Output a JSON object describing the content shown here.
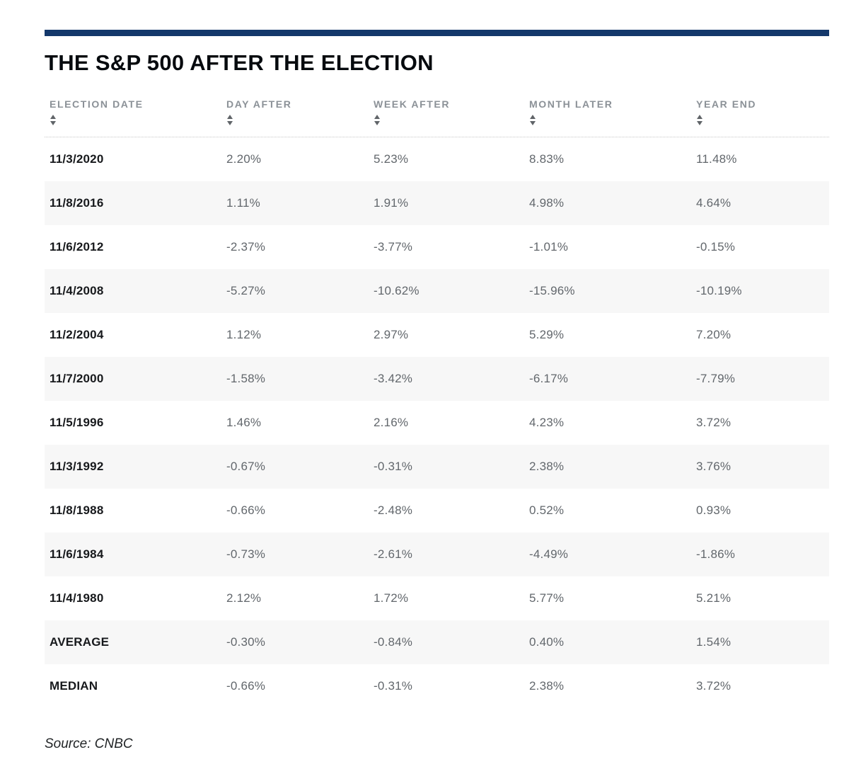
{
  "page": {
    "title": "THE S&P 500 AFTER THE ELECTION",
    "source": "Source: CNBC"
  },
  "colors": {
    "accent_bar": "#14386b",
    "header_text": "#8b9197",
    "sort_arrow": "#606468",
    "row_label_text": "#17191c",
    "value_text": "#62676c",
    "row_stripe": "#f7f7f7",
    "background": "#ffffff"
  },
  "icons": {
    "sort_asc": "triangle-up",
    "sort_desc": "triangle-down"
  },
  "table": {
    "columns": [
      {
        "label": "ELECTION DATE",
        "sortable": true
      },
      {
        "label": "DAY AFTER",
        "sortable": true
      },
      {
        "label": "WEEK AFTER",
        "sortable": true
      },
      {
        "label": "MONTH LATER",
        "sortable": true
      },
      {
        "label": "YEAR END",
        "sortable": true
      }
    ],
    "rows": [
      {
        "cells": [
          "11/3/2020",
          "2.20%",
          "5.23%",
          "8.83%",
          "11.48%"
        ]
      },
      {
        "cells": [
          "11/8/2016",
          "1.11%",
          "1.91%",
          "4.98%",
          "4.64%"
        ]
      },
      {
        "cells": [
          "11/6/2012",
          "-2.37%",
          "-3.77%",
          "-1.01%",
          "-0.15%"
        ]
      },
      {
        "cells": [
          "11/4/2008",
          "-5.27%",
          "-10.62%",
          "-15.96%",
          "-10.19%"
        ]
      },
      {
        "cells": [
          "11/2/2004",
          "1.12%",
          "2.97%",
          "5.29%",
          "7.20%"
        ]
      },
      {
        "cells": [
          "11/7/2000",
          "-1.58%",
          "-3.42%",
          "-6.17%",
          "-7.79%"
        ]
      },
      {
        "cells": [
          "11/5/1996",
          "1.46%",
          "2.16%",
          "4.23%",
          "3.72%"
        ]
      },
      {
        "cells": [
          "11/3/1992",
          "-0.67%",
          "-0.31%",
          "2.38%",
          "3.76%"
        ]
      },
      {
        "cells": [
          "11/8/1988",
          "-0.66%",
          "-2.48%",
          "0.52%",
          "0.93%"
        ]
      },
      {
        "cells": [
          "11/6/1984",
          "-0.73%",
          "-2.61%",
          "-4.49%",
          "-1.86%"
        ]
      },
      {
        "cells": [
          "11/4/1980",
          "2.12%",
          "1.72%",
          "5.77%",
          "5.21%"
        ]
      },
      {
        "cells": [
          "AVERAGE",
          "-0.30%",
          "-0.84%",
          "0.40%",
          "1.54%"
        ]
      },
      {
        "cells": [
          "MEDIAN",
          "-0.66%",
          "-0.31%",
          "2.38%",
          "3.72%"
        ]
      }
    ]
  },
  "chart_data": {
    "type": "table",
    "title": "THE S&P 500 AFTER THE ELECTION",
    "columns": [
      "ELECTION DATE",
      "DAY AFTER",
      "WEEK AFTER",
      "MONTH LATER",
      "YEAR END"
    ],
    "units": "%",
    "rows": [
      [
        "11/3/2020",
        2.2,
        5.23,
        8.83,
        11.48
      ],
      [
        "11/8/2016",
        1.11,
        1.91,
        4.98,
        4.64
      ],
      [
        "11/6/2012",
        -2.37,
        -3.77,
        -1.01,
        -0.15
      ],
      [
        "11/4/2008",
        -5.27,
        -10.62,
        -15.96,
        -10.19
      ],
      [
        "11/2/2004",
        1.12,
        2.97,
        5.29,
        7.2
      ],
      [
        "11/7/2000",
        -1.58,
        -3.42,
        -6.17,
        -7.79
      ],
      [
        "11/5/1996",
        1.46,
        2.16,
        4.23,
        3.72
      ],
      [
        "11/3/1992",
        -0.67,
        -0.31,
        2.38,
        3.76
      ],
      [
        "11/8/1988",
        -0.66,
        -2.48,
        0.52,
        0.93
      ],
      [
        "11/6/1984",
        -0.73,
        -2.61,
        -4.49,
        -1.86
      ],
      [
        "11/4/1980",
        2.12,
        1.72,
        5.77,
        5.21
      ],
      [
        "AVERAGE",
        -0.3,
        -0.84,
        0.4,
        1.54
      ],
      [
        "MEDIAN",
        -0.66,
        -0.31,
        2.38,
        3.72
      ]
    ],
    "source": "CNBC"
  }
}
